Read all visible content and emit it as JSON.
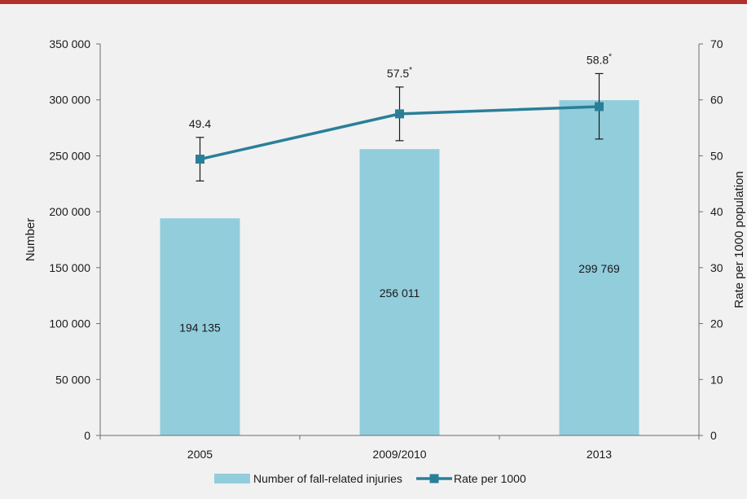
{
  "chart_data": {
    "type": "bar",
    "categories": [
      "2005",
      "2009/2010",
      "2013"
    ],
    "series": [
      {
        "name": "Number of fall-related injuries",
        "type": "bar",
        "axis": "left",
        "values": [
          194135,
          256011,
          299769
        ],
        "data_labels": [
          "194 135",
          "256 011",
          "299 769"
        ],
        "color": "#92cddc"
      },
      {
        "name": "Rate per 1000",
        "type": "line",
        "axis": "right",
        "values": [
          49.4,
          57.5,
          58.8
        ],
        "error_low": [
          45.5,
          52.7,
          53.0
        ],
        "error_high": [
          53.3,
          62.3,
          64.7
        ],
        "data_labels": [
          "49.4",
          "57.5",
          "58.8"
        ],
        "label_markers": [
          "",
          "*",
          "*"
        ],
        "color": "#2a7f98"
      }
    ],
    "ylabel": "Number",
    "y2label": "Rate per 1000 population",
    "ylim": [
      0,
      350000
    ],
    "y2lim": [
      0,
      70
    ],
    "yticks": [
      "0",
      "50 000",
      "100 000",
      "150 000",
      "200 000",
      "250 000",
      "300 000",
      "350 000"
    ],
    "y2ticks": [
      "0",
      "10",
      "20",
      "30",
      "40",
      "50",
      "60",
      "70"
    ],
    "grid": false,
    "legend_position": "bottom",
    "colors": {
      "background": "#f1f1f2",
      "top_rule": "#b0302b",
      "axis": "#6d6d6d"
    }
  }
}
